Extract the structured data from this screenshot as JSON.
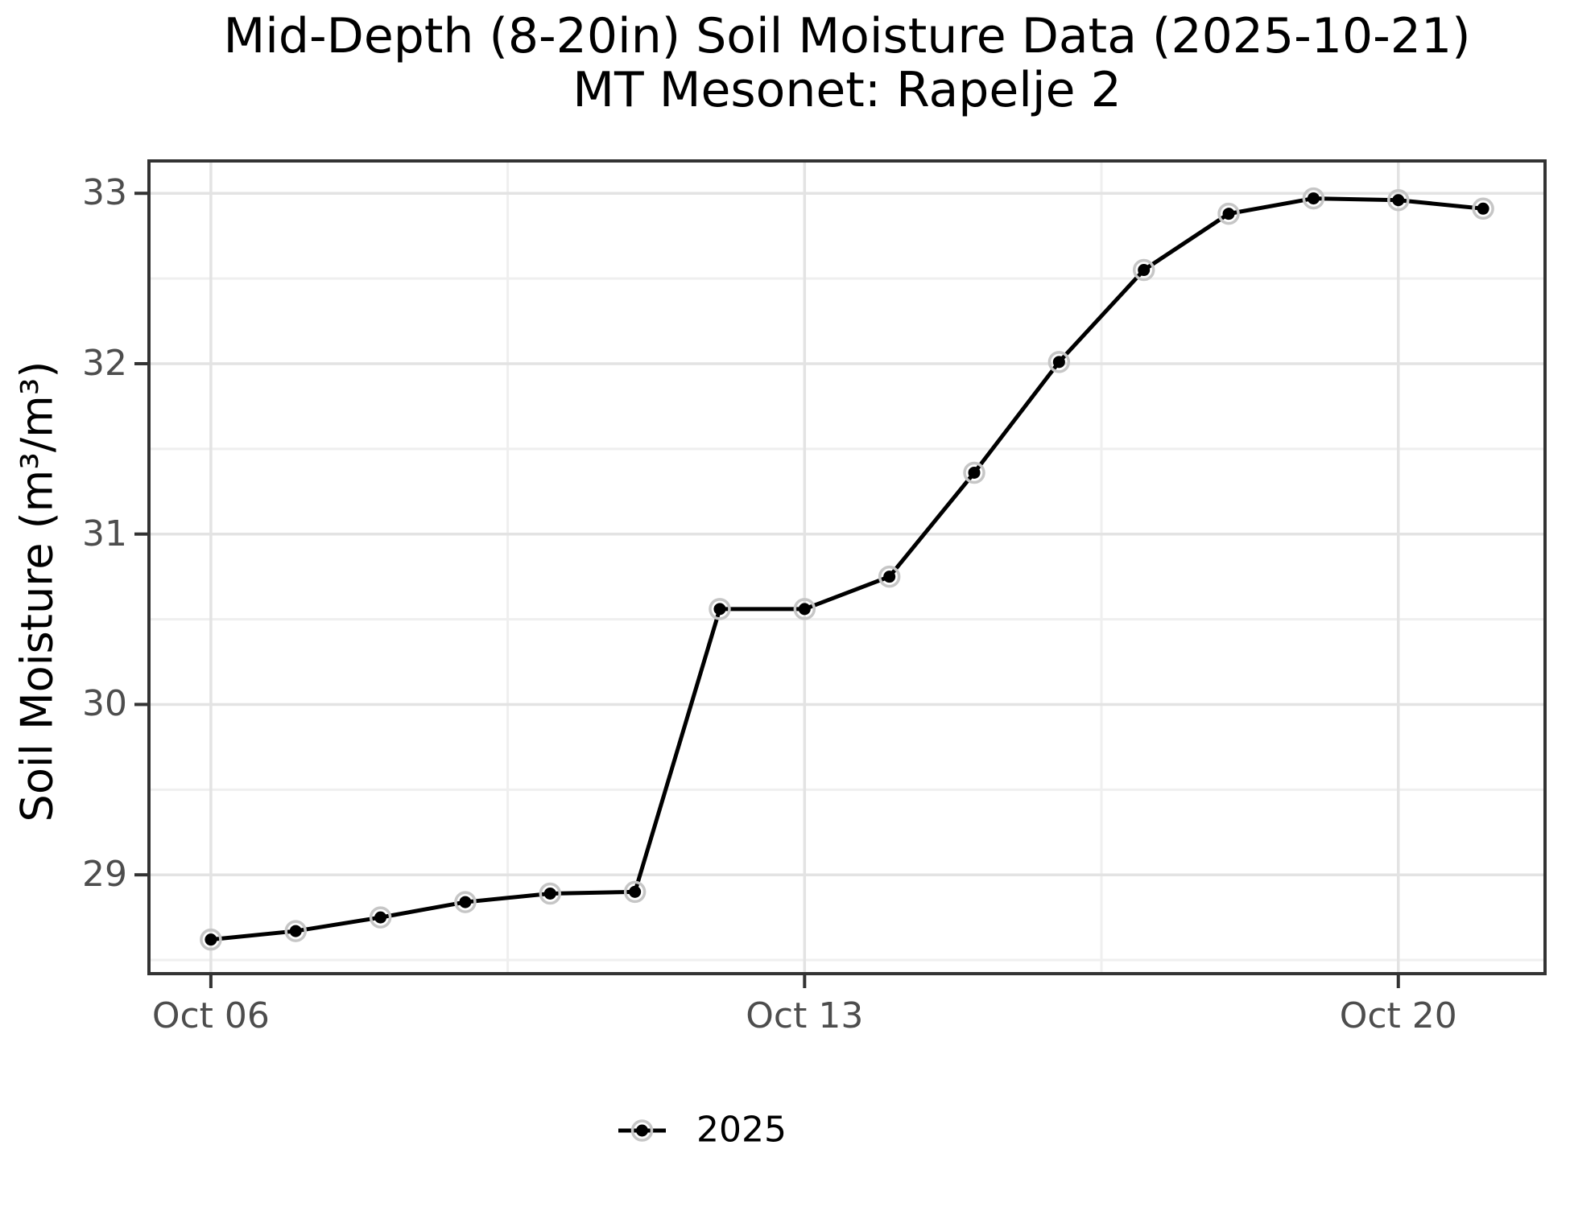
{
  "chart_data": {
    "type": "line",
    "title": "Mid-Depth (8-20in) Soil Moisture Data (2025-10-21)",
    "subtitle": "MT Mesonet: Rapelje 2",
    "xlabel": "",
    "ylabel": "Soil Moisture (m³/m³)",
    "legend_position": "bottom",
    "grid": true,
    "x_axis": {
      "unit": "date",
      "range_days": [
        -0.73,
        15.73
      ],
      "major_ticks": [
        {
          "day": 0,
          "label": "Oct 06"
        },
        {
          "day": 7,
          "label": "Oct 13"
        },
        {
          "day": 14,
          "label": "Oct 20"
        }
      ],
      "minor_days": [
        3.5,
        10.5
      ]
    },
    "y_axis": {
      "range": [
        28.42,
        33.19
      ],
      "major_ticks": [
        29,
        30,
        31,
        32,
        33
      ],
      "minor_ticks": [
        28.5,
        29.5,
        30.5,
        31.5,
        32.5
      ]
    },
    "series": [
      {
        "name": "2025",
        "dates": [
          "Oct 06",
          "Oct 07",
          "Oct 08",
          "Oct 09",
          "Oct 10",
          "Oct 11",
          "Oct 12",
          "Oct 13",
          "Oct 14",
          "Oct 15",
          "Oct 16",
          "Oct 17",
          "Oct 18",
          "Oct 19",
          "Oct 20",
          "Oct 21"
        ],
        "values": [
          28.62,
          28.67,
          28.75,
          28.84,
          28.89,
          28.9,
          30.56,
          30.56,
          30.75,
          31.36,
          32.01,
          32.55,
          32.88,
          32.97,
          32.96,
          32.91
        ]
      }
    ],
    "colors": {
      "line": "#000000",
      "point_fill": "#000000",
      "point_halo": "#c6c6c6",
      "grid_major": "#e3e3e3",
      "grid_minor": "#efefef",
      "panel_border": "#333333",
      "tick_mark": "#333333",
      "tick_text": "#4d4d4d",
      "title_text": "#000000"
    }
  }
}
